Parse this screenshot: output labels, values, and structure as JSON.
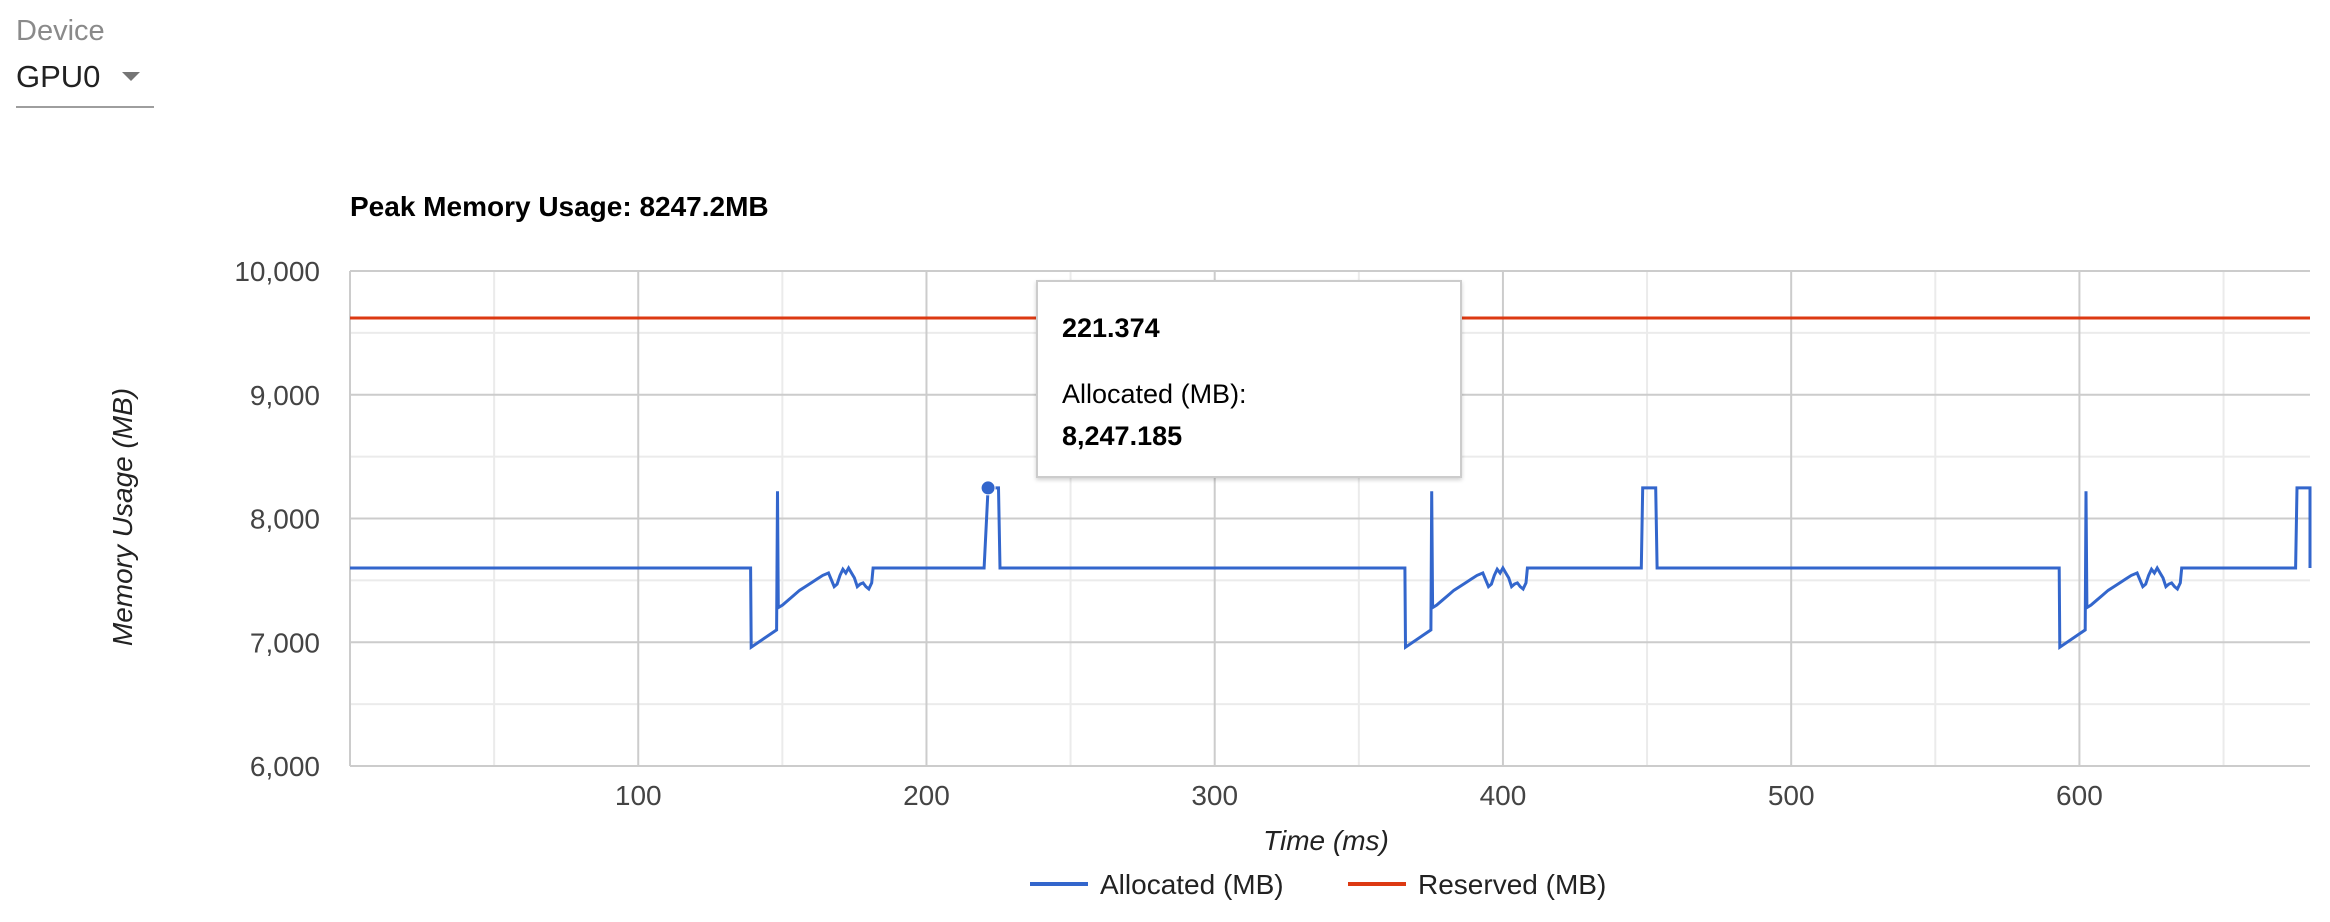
{
  "device": {
    "label": "Device",
    "value": "GPU0"
  },
  "tooltip": {
    "x_value": "221.374",
    "series": "Allocated (MB):",
    "y_value": "8,247.185"
  },
  "chart_data": {
    "type": "line",
    "title": "Peak Memory Usage: 8247.2MB",
    "xlabel": "Time (ms)",
    "ylabel": "Memory Usage (MB)",
    "xlim": [
      0,
      680
    ],
    "ylim": [
      6000,
      10000
    ],
    "xticks": [
      100,
      200,
      300,
      400,
      500,
      600
    ],
    "xtick_labels": [
      "100",
      "200",
      "300",
      "400",
      "500",
      "600"
    ],
    "yticks": [
      6000,
      7000,
      8000,
      9000,
      10000
    ],
    "ytick_labels": [
      "6,000",
      "7,000",
      "8,000",
      "9,000",
      "10,000"
    ],
    "grid": true,
    "legend_position": "bottom",
    "colors": {
      "allocated": "#3366cc",
      "reserved": "#dc3912"
    },
    "series": [
      {
        "name": "Allocated (MB)",
        "color": "#3366cc",
        "x": [
          0,
          139,
          139.2,
          148,
          148.3,
          148.6,
          150,
          152,
          154,
          156,
          158,
          160,
          162,
          164,
          166,
          168,
          169,
          170,
          171,
          172,
          173,
          174,
          175,
          176,
          177,
          178,
          179,
          180,
          181,
          181.5,
          220,
          221.374,
          222,
          225,
          225.5,
          366,
          366.2,
          375,
          375.3,
          375.6,
          377,
          379,
          381,
          383,
          385,
          387,
          389,
          391,
          393,
          395,
          396,
          397,
          398,
          399,
          400,
          401,
          402,
          403,
          404,
          405,
          406,
          407,
          408,
          408.5,
          448,
          448.5,
          453,
          453.5,
          593,
          593.2,
          602,
          602.3,
          602.6,
          604,
          606,
          608,
          610,
          612,
          614,
          616,
          618,
          620,
          622,
          623,
          624,
          625,
          626,
          627,
          628,
          629,
          630,
          631,
          632,
          633,
          634,
          635,
          635.5,
          675,
          675.5,
          680,
          680
        ],
        "y": [
          7600,
          7600,
          6960,
          7100,
          8220,
          7280,
          7300,
          7340,
          7380,
          7420,
          7450,
          7480,
          7510,
          7540,
          7560,
          7450,
          7470,
          7540,
          7590,
          7560,
          7600,
          7560,
          7520,
          7450,
          7470,
          7480,
          7450,
          7430,
          7480,
          7600,
          7600,
          8247,
          8247,
          8247,
          7600,
          7600,
          6960,
          7100,
          8220,
          7280,
          7300,
          7340,
          7380,
          7420,
          7450,
          7480,
          7510,
          7540,
          7560,
          7450,
          7470,
          7540,
          7590,
          7560,
          7600,
          7560,
          7520,
          7450,
          7470,
          7480,
          7450,
          7430,
          7480,
          7600,
          7600,
          8247,
          8247,
          7600,
          7600,
          6960,
          7100,
          8220,
          7280,
          7300,
          7340,
          7380,
          7420,
          7450,
          7480,
          7510,
          7540,
          7560,
          7450,
          7470,
          7540,
          7590,
          7560,
          7600,
          7560,
          7520,
          7450,
          7470,
          7480,
          7450,
          7430,
          7480,
          7600,
          7600,
          8247,
          8247,
          7600
        ]
      },
      {
        "name": "Reserved (MB)",
        "color": "#dc3912",
        "x": [
          0,
          680
        ],
        "y": [
          9620,
          9620
        ]
      }
    ],
    "highlight": {
      "series": "Allocated (MB)",
      "x": 221.374,
      "y": 8247.185
    }
  }
}
